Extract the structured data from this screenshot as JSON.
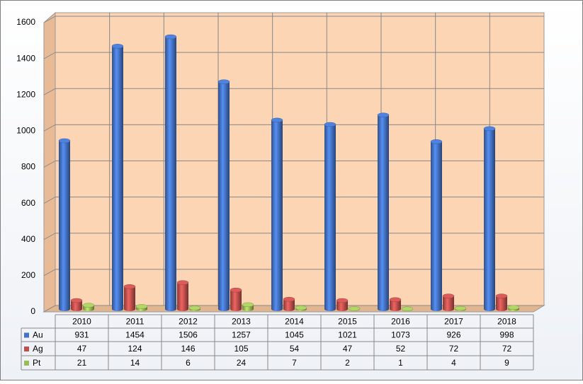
{
  "chart_data": {
    "type": "bar",
    "categories": [
      "2010",
      "2011",
      "2012",
      "2013",
      "2014",
      "2015",
      "2016",
      "2017",
      "2018"
    ],
    "series": [
      {
        "name": "Au",
        "color": "#4472c4",
        "values": [
          931,
          1454,
          1506,
          1257,
          1045,
          1021,
          1073,
          926,
          998
        ]
      },
      {
        "name": "Ag",
        "color": "#c0504d",
        "values": [
          47,
          124,
          146,
          105,
          54,
          47,
          52,
          72,
          72
        ]
      },
      {
        "name": "Pt",
        "color": "#9bbb59",
        "values": [
          21,
          14,
          6,
          24,
          7,
          2,
          1,
          4,
          9
        ]
      }
    ],
    "ylim": [
      0,
      1600
    ],
    "yticks": [
      0,
      200,
      400,
      600,
      800,
      1000,
      1200,
      1400,
      1600
    ],
    "grid": true
  }
}
